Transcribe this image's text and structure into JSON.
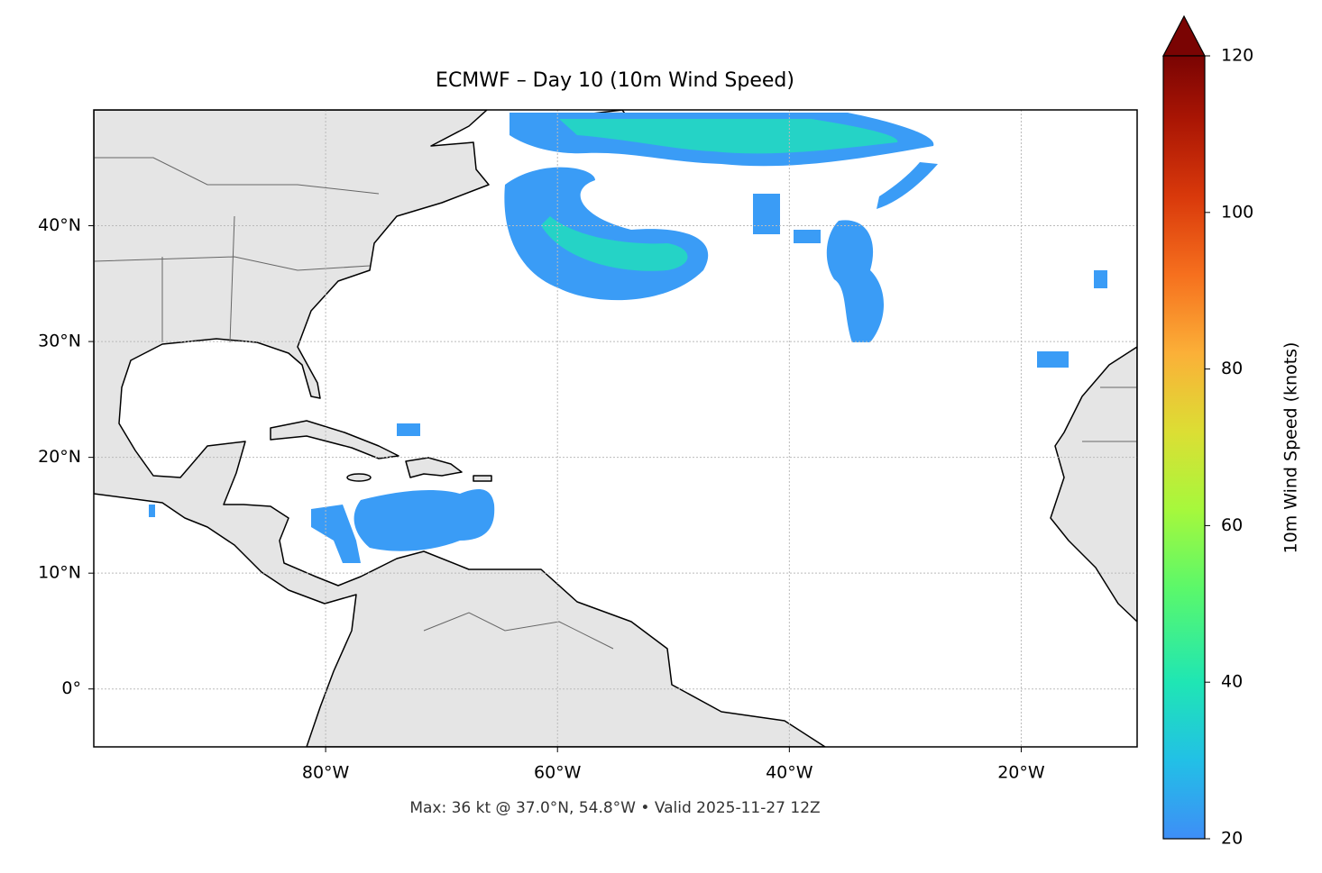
{
  "map": {
    "title": "ECMWF – Day 10 (10m Wind Speed)",
    "footer": "Max: 36 kt @ 37.0°N, 54.8°W • Valid 2025-11-27 12Z",
    "xlim": [
      -100,
      -10
    ],
    "ylim": [
      -5,
      50
    ],
    "xticks": [
      {
        "value": -80,
        "label": "80°W"
      },
      {
        "value": -60,
        "label": "60°W"
      },
      {
        "value": -40,
        "label": "40°W"
      },
      {
        "value": -20,
        "label": "20°W"
      }
    ],
    "yticks": [
      {
        "value": 0,
        "label": "0°"
      },
      {
        "value": 10,
        "label": "10°N"
      },
      {
        "value": 20,
        "label": "20°N"
      },
      {
        "value": 30,
        "label": "30°N"
      },
      {
        "value": 40,
        "label": "40°N"
      }
    ],
    "grid": true
  },
  "colorbar": {
    "label": "10m Wind Speed (knots)",
    "lim": [
      20,
      120
    ],
    "ticks": [
      20,
      40,
      60,
      80,
      100,
      120
    ]
  }
}
